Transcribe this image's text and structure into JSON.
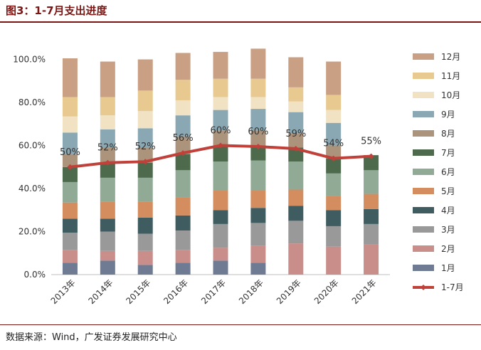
{
  "figure": {
    "title": "图3：1-7月支出进度",
    "source": "数据来源：Wind，广发证券发展研究中心"
  },
  "chart_data": {
    "type": "bar",
    "stacked": true,
    "title": "1-7月支出进度",
    "categories": [
      "2013年",
      "2014年",
      "2015年",
      "2016年",
      "2017年",
      "2018年",
      "2019年",
      "2020年",
      "2021年"
    ],
    "ylim": [
      0,
      110
    ],
    "yticks": [
      "0.0%",
      "20.0%",
      "40.0%",
      "60.0%",
      "80.0%",
      "100.0%"
    ],
    "ytick_values": [
      0,
      20,
      40,
      60,
      80,
      100
    ],
    "legend_position": "right",
    "series": [
      {
        "name": "1月",
        "color": "#6e7b93",
        "values": [
          5.5,
          6.5,
          4.5,
          5.5,
          6.5,
          5.5,
          0,
          0,
          0
        ]
      },
      {
        "name": "2月",
        "color": "#c98d8a",
        "values": [
          6,
          4.5,
          6.5,
          6,
          6,
          8,
          14.5,
          13,
          14
        ]
      },
      {
        "name": "3月",
        "color": "#999999",
        "values": [
          8,
          9,
          8,
          9,
          11,
          10.5,
          10.5,
          9.5,
          9.5
        ]
      },
      {
        "name": "4月",
        "color": "#3f5d61",
        "values": [
          6.5,
          6,
          7.5,
          7,
          6.5,
          7,
          7,
          7.5,
          7
        ]
      },
      {
        "name": "5月",
        "color": "#d38d5f",
        "values": [
          7.5,
          8,
          7.5,
          8.5,
          9,
          8,
          7.5,
          6.5,
          7
        ]
      },
      {
        "name": "6月",
        "color": "#90aa96",
        "values": [
          9.5,
          11,
          11,
          12.5,
          13.5,
          14,
          13,
          10.5,
          11
        ]
      },
      {
        "name": "7月",
        "color": "#4e6a4c",
        "values": [
          7,
          7,
          7,
          7.5,
          7.5,
          7,
          6.5,
          7,
          7
        ]
      },
      {
        "name": "8月",
        "color": "#ac937b",
        "values": [
          6,
          7,
          7,
          8,
          7,
          7,
          6.5,
          6,
          0
        ]
      },
      {
        "name": "9月",
        "color": "#8aa8b3",
        "values": [
          10,
          8.5,
          9,
          10,
          9.5,
          10,
          10,
          10.5,
          0
        ]
      },
      {
        "name": "10月",
        "color": "#f0e2c3",
        "values": [
          7.5,
          6.5,
          8,
          7,
          6,
          5.5,
          5,
          6,
          0
        ]
      },
      {
        "name": "11月",
        "color": "#e8c98f",
        "values": [
          9,
          8.5,
          9.5,
          9.5,
          8.5,
          8.5,
          6.5,
          7,
          0
        ]
      },
      {
        "name": "12月",
        "color": "#c9a083",
        "values": [
          18,
          16.5,
          14.5,
          12.5,
          12.5,
          14,
          14,
          15.5,
          0
        ]
      }
    ],
    "line": {
      "name": "1-7月",
      "color": "#c0413a",
      "values": [
        50,
        52,
        52.5,
        56.5,
        60,
        59.5,
        58.5,
        54,
        55
      ],
      "labels": [
        "50%",
        "52%",
        "52%",
        "56%",
        "60%",
        "60%",
        "59%",
        "54%",
        "55%"
      ]
    }
  }
}
